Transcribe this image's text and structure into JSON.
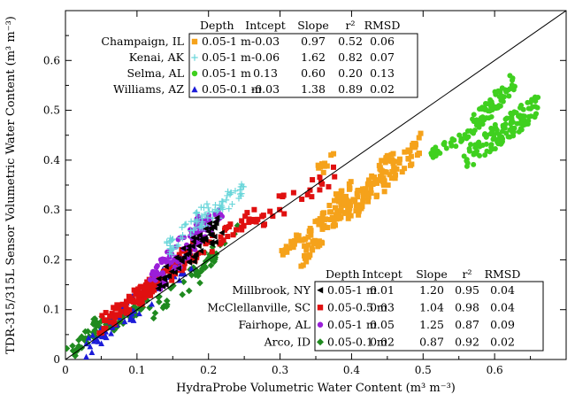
{
  "chart_data": {
    "type": "scatter",
    "xlabel": "HydraProbe Volumetric Water Content (m³ m⁻³)",
    "ylabel": "TDR-315/315L Sensor Volumetric Water Content (m³ m⁻³)",
    "xlim": [
      0,
      0.7
    ],
    "ylim": [
      0,
      0.7
    ],
    "x_ticks": [
      "0",
      "0.1",
      "0.2",
      "0.3",
      "0.4",
      "0.5",
      "0.6"
    ],
    "y_ticks": [
      "0",
      "0.1",
      "0.2",
      "0.3",
      "0.4",
      "0.5",
      "0.6"
    ],
    "reference_line": "1:1",
    "grid": false,
    "legend_columns": [
      "Depth",
      "Intcept",
      "Slope",
      "r²",
      "RMSD"
    ],
    "legends": [
      {
        "placement": "top-left",
        "series": [
          "champaign",
          "kenai",
          "selma",
          "williams"
        ]
      },
      {
        "placement": "bottom-right",
        "series": [
          "millbrook",
          "mcclellanville",
          "fairhope",
          "arco"
        ]
      }
    ],
    "series": [
      {
        "key": "champaign",
        "name": "Champaign, IL",
        "depth": "0.05-1 m",
        "intercept": "-0.03",
        "slope": "0.97",
        "r2": "0.52",
        "rmsd": "0.06",
        "color": "#f5a21b",
        "marker": "square",
        "clusters": [
          {
            "x": [
              0.3,
              0.33
            ],
            "y": [
              0.21,
              0.25
            ],
            "n": 20
          },
          {
            "x": [
              0.33,
              0.4
            ],
            "y": [
              0.21,
              0.34
            ],
            "n": 90
          },
          {
            "x": [
              0.39,
              0.46
            ],
            "y": [
              0.28,
              0.4
            ],
            "n": 90
          },
          {
            "x": [
              0.44,
              0.5
            ],
            "y": [
              0.34,
              0.44
            ],
            "n": 35
          },
          {
            "x": [
              0.35,
              0.38
            ],
            "y": [
              0.37,
              0.42
            ],
            "n": 10
          }
        ]
      },
      {
        "key": "kenai",
        "name": "Kenai, AK",
        "depth": "0.05-1 m",
        "intercept": "-0.06",
        "slope": "1.62",
        "r2": "0.82",
        "rmsd": "0.07",
        "color": "#6ad6da",
        "marker": "plus",
        "clusters": [
          {
            "x": [
              0.14,
              0.2
            ],
            "y": [
              0.22,
              0.3
            ],
            "n": 45
          },
          {
            "x": [
              0.19,
              0.25
            ],
            "y": [
              0.27,
              0.35
            ],
            "n": 40
          }
        ]
      },
      {
        "key": "selma",
        "name": "Selma, AL",
        "depth": "0.05-1 m",
        "intercept": "0.13",
        "slope": "0.60",
        "r2": "0.20",
        "rmsd": "0.13",
        "color": "#3fd01f",
        "marker": "circle",
        "clusters": [
          {
            "x": [
              0.56,
              0.66
            ],
            "y": [
              0.4,
              0.51
            ],
            "n": 120
          },
          {
            "x": [
              0.57,
              0.63
            ],
            "y": [
              0.47,
              0.56
            ],
            "n": 70
          },
          {
            "x": [
              0.51,
              0.57
            ],
            "y": [
              0.41,
              0.46
            ],
            "n": 35
          }
        ]
      },
      {
        "key": "williams",
        "name": "Williams, AZ",
        "depth": "0.05-0.1 m",
        "intercept": "-0.03",
        "slope": "1.38",
        "r2": "0.89",
        "rmsd": "0.02",
        "color": "#1c1cd8",
        "marker": "triangle",
        "clusters": [
          {
            "x": [
              0.03,
              0.1
            ],
            "y": [
              0.02,
              0.12
            ],
            "n": 40
          },
          {
            "x": [
              0.09,
              0.18
            ],
            "y": [
              0.09,
              0.22
            ],
            "n": 40
          }
        ]
      },
      {
        "key": "millbrook",
        "name": "Millbrook, NY",
        "depth": "0.05-1 m",
        "intercept": "0.01",
        "slope": "1.20",
        "r2": "0.95",
        "rmsd": "0.04",
        "color": "#000000",
        "marker": "triangle-left",
        "clusters": [
          {
            "x": [
              0.13,
              0.22
            ],
            "y": [
              0.16,
              0.27
            ],
            "n": 60
          }
        ]
      },
      {
        "key": "mcclellanville",
        "name": "McClellanville, SC",
        "depth": "0.05-0.5 m",
        "intercept": "0.03",
        "slope": "1.04",
        "r2": "0.98",
        "rmsd": "0.04",
        "color": "#e01010",
        "marker": "square",
        "clusters": [
          {
            "x": [
              0.05,
              0.12
            ],
            "y": [
              0.07,
              0.15
            ],
            "n": 60
          },
          {
            "x": [
              0.1,
              0.18
            ],
            "y": [
              0.12,
              0.22
            ],
            "n": 70
          },
          {
            "x": [
              0.17,
              0.27
            ],
            "y": [
              0.2,
              0.29
            ],
            "n": 40
          },
          {
            "x": [
              0.27,
              0.38
            ],
            "y": [
              0.28,
              0.38
            ],
            "n": 25
          }
        ]
      },
      {
        "key": "fairhope",
        "name": "Fairhope, AL",
        "depth": "0.05-1 m",
        "intercept": "0.05",
        "slope": "1.25",
        "r2": "0.87",
        "rmsd": "0.09",
        "color": "#9a1ed8",
        "marker": "circle",
        "clusters": [
          {
            "x": [
              0.12,
              0.2
            ],
            "y": [
              0.15,
              0.28
            ],
            "n": 80
          },
          {
            "x": [
              0.17,
              0.22
            ],
            "y": [
              0.22,
              0.3
            ],
            "n": 30
          }
        ]
      },
      {
        "key": "arco",
        "name": "Arco, ID",
        "depth": "0.05-0.1 m",
        "intercept": "0.02",
        "slope": "0.87",
        "r2": "0.92",
        "rmsd": "0.02",
        "color": "#1f8a1f",
        "marker": "diamond",
        "clusters": [
          {
            "x": [
              0.0,
              0.05
            ],
            "y": [
              0.0,
              0.08
            ],
            "n": 35
          },
          {
            "x": [
              0.04,
              0.12
            ],
            "y": [
              0.05,
              0.12
            ],
            "n": 40
          },
          {
            "x": [
              0.12,
              0.21
            ],
            "y": [
              0.1,
              0.2
            ],
            "n": 35
          },
          {
            "x": [
              0.18,
              0.24
            ],
            "y": [
              0.18,
              0.26
            ],
            "n": 15
          }
        ]
      }
    ]
  }
}
